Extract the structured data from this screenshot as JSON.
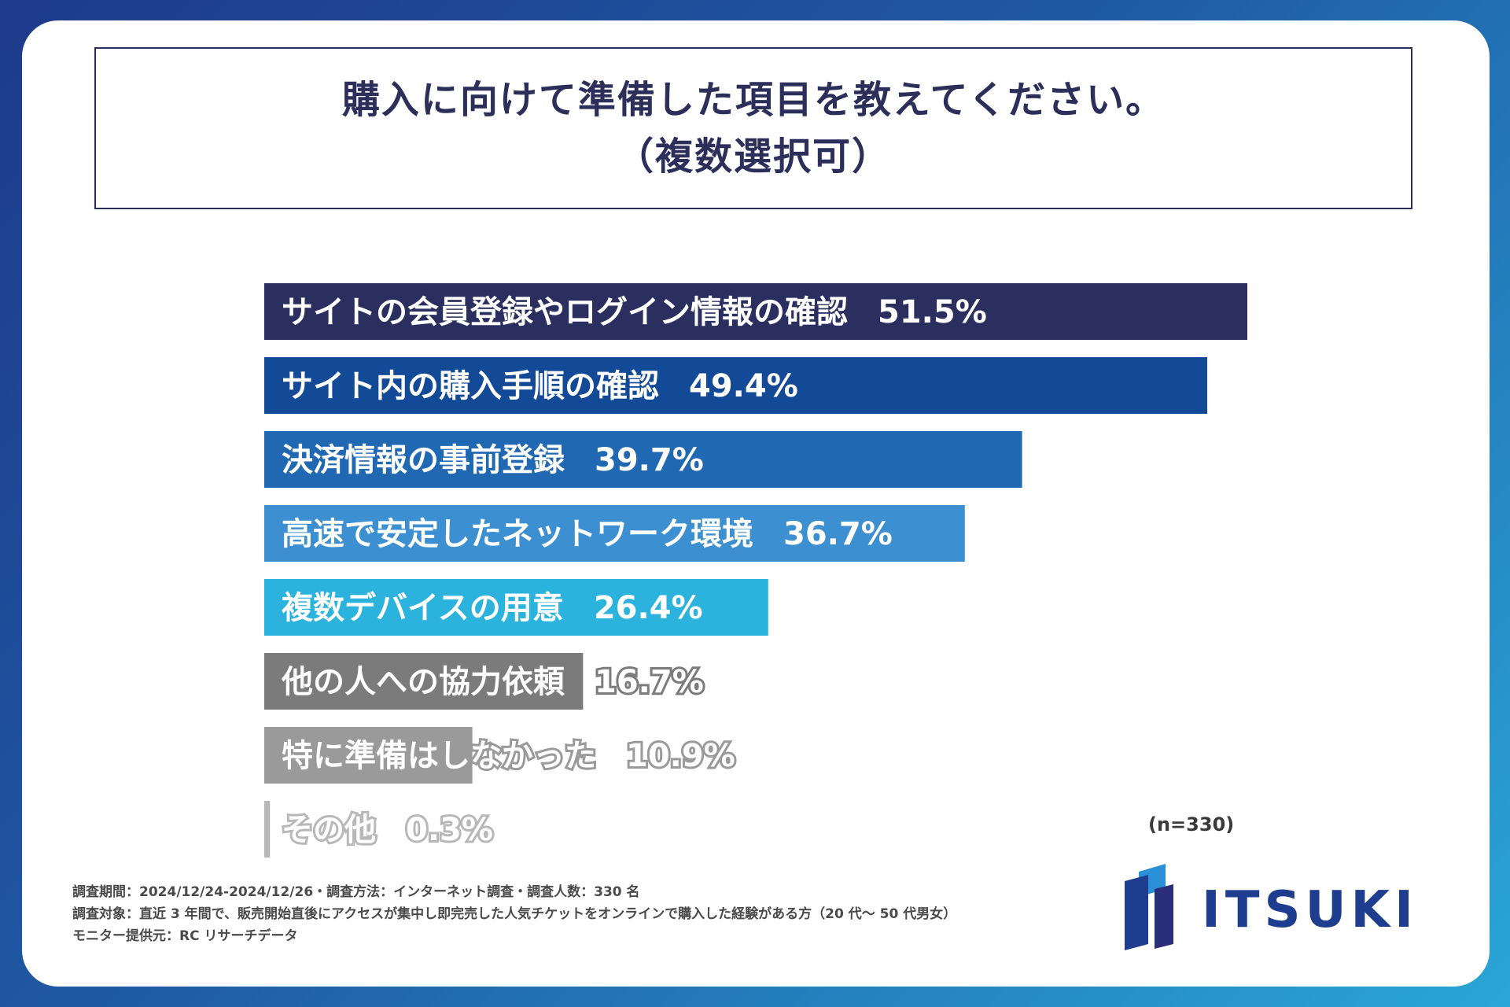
{
  "title": {
    "line1": "購入に向けて準備した項目を教えてください。",
    "line2": "（複数選択可）"
  },
  "chart_data": {
    "type": "bar",
    "orientation": "horizontal",
    "title": "購入に向けて準備した項目を教えてください。（複数選択可）",
    "categories": [
      "サイトの会員登録やログイン情報の確認",
      "サイト内の購入手順の確認",
      "決済情報の事前登録",
      "高速で安定したネットワーク環境",
      "複数デバイスの用意",
      "他の人への協力依頼",
      "特に準備はしなかった",
      "その他"
    ],
    "values": [
      51.5,
      49.4,
      39.7,
      36.7,
      26.4,
      16.7,
      10.9,
      0.3
    ],
    "value_labels": [
      "51.5%",
      "49.4%",
      "39.7%",
      "36.7%",
      "26.4%",
      "16.7%",
      "10.9%",
      "0.3%"
    ],
    "colors": [
      "#2b2f5f",
      "#124a98",
      "#2168b3",
      "#3c8fd0",
      "#2bb3dd",
      "#7b7b7b",
      "#9a9a9a",
      "#b8b8b8"
    ],
    "xlim": [
      0,
      51.5
    ],
    "unit": "%"
  },
  "sample_size": "(n=330)",
  "notes": [
    "調査期間：2024/12/24-2024/12/26・調査方法：インターネット調査・調査人数：330 名",
    "調査対象：直近 3 年間で、販売開始直後にアクセスが集中し即完売した人気チケットをオンラインで購入した経験がある方（20 代〜 50 代男女）",
    "モニター提供元：RC リサーチデータ"
  ],
  "logo": {
    "text": "ITSUKI",
    "color": "#1f3d8f"
  }
}
